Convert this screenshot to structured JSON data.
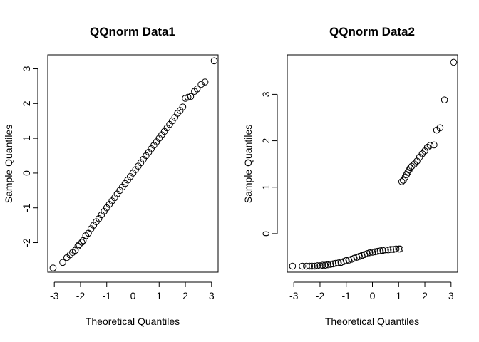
{
  "chart_data": [
    {
      "type": "scatter",
      "title": "QQnorm Data1",
      "xlabel": "Theoretical Quantiles",
      "ylabel": "Sample Quantiles",
      "xlim": [
        -3.25,
        3.25
      ],
      "ylim": [
        -2.85,
        3.4
      ],
      "x_ticks": [
        -3,
        -2,
        -1,
        0,
        1,
        2,
        3
      ],
      "y_ticks": [
        -2,
        -1,
        0,
        1,
        2,
        3
      ],
      "grid": false,
      "marker": "open-circle",
      "points": [
        [
          -3.05,
          -2.73
        ],
        [
          -2.68,
          -2.57
        ],
        [
          -2.52,
          -2.43
        ],
        [
          -2.4,
          -2.35
        ],
        [
          -2.3,
          -2.28
        ],
        [
          -2.2,
          -2.22
        ],
        [
          -2.1,
          -2.1
        ],
        [
          -2.05,
          -2.06
        ],
        [
          -1.95,
          -1.99
        ],
        [
          -1.9,
          -1.94
        ],
        [
          -1.8,
          -1.8
        ],
        [
          -1.7,
          -1.73
        ],
        [
          -1.6,
          -1.6
        ],
        [
          -1.5,
          -1.5
        ],
        [
          -1.4,
          -1.4
        ],
        [
          -1.3,
          -1.31
        ],
        [
          -1.2,
          -1.2
        ],
        [
          -1.1,
          -1.1
        ],
        [
          -1.0,
          -1.0
        ],
        [
          -0.9,
          -0.9
        ],
        [
          -0.8,
          -0.8
        ],
        [
          -0.7,
          -0.71
        ],
        [
          -0.6,
          -0.6
        ],
        [
          -0.5,
          -0.5
        ],
        [
          -0.4,
          -0.4
        ],
        [
          -0.3,
          -0.3
        ],
        [
          -0.2,
          -0.2
        ],
        [
          -0.1,
          -0.1
        ],
        [
          0.0,
          0.0
        ],
        [
          0.1,
          0.1
        ],
        [
          0.2,
          0.2
        ],
        [
          0.3,
          0.3
        ],
        [
          0.4,
          0.4
        ],
        [
          0.5,
          0.5
        ],
        [
          0.6,
          0.6
        ],
        [
          0.7,
          0.7
        ],
        [
          0.8,
          0.8
        ],
        [
          0.9,
          0.9
        ],
        [
          1.0,
          1.0
        ],
        [
          1.1,
          1.1
        ],
        [
          1.2,
          1.2
        ],
        [
          1.3,
          1.3
        ],
        [
          1.4,
          1.4
        ],
        [
          1.5,
          1.5
        ],
        [
          1.6,
          1.6
        ],
        [
          1.7,
          1.72
        ],
        [
          1.8,
          1.8
        ],
        [
          1.9,
          1.9
        ],
        [
          2.0,
          2.15
        ],
        [
          2.1,
          2.18
        ],
        [
          2.2,
          2.2
        ],
        [
          2.35,
          2.35
        ],
        [
          2.45,
          2.42
        ],
        [
          2.6,
          2.55
        ],
        [
          2.75,
          2.62
        ],
        [
          3.1,
          3.23
        ]
      ]
    },
    {
      "type": "scatter",
      "title": "QQnorm  Data2",
      "xlabel": "Theoretical Quantiles",
      "ylabel": "Sample Quantiles",
      "xlim": [
        -3.25,
        3.25
      ],
      "ylim": [
        -0.83,
        3.85
      ],
      "x_ticks": [
        -3,
        -2,
        -1,
        0,
        1,
        2,
        3
      ],
      "y_ticks": [
        0,
        1,
        2,
        3
      ],
      "grid": false,
      "marker": "open-circle",
      "points": [
        [
          -3.05,
          -0.7
        ],
        [
          -2.68,
          -0.7
        ],
        [
          -2.52,
          -0.7
        ],
        [
          -2.4,
          -0.7
        ],
        [
          -2.3,
          -0.7
        ],
        [
          -2.2,
          -0.7
        ],
        [
          -2.1,
          -0.69
        ],
        [
          -2.0,
          -0.69
        ],
        [
          -1.9,
          -0.68
        ],
        [
          -1.8,
          -0.68
        ],
        [
          -1.7,
          -0.67
        ],
        [
          -1.6,
          -0.66
        ],
        [
          -1.5,
          -0.65
        ],
        [
          -1.4,
          -0.64
        ],
        [
          -1.3,
          -0.63
        ],
        [
          -1.2,
          -0.62
        ],
        [
          -1.1,
          -0.6
        ],
        [
          -1.0,
          -0.58
        ],
        [
          -0.9,
          -0.57
        ],
        [
          -0.8,
          -0.55
        ],
        [
          -0.7,
          -0.53
        ],
        [
          -0.6,
          -0.51
        ],
        [
          -0.5,
          -0.49
        ],
        [
          -0.4,
          -0.47
        ],
        [
          -0.3,
          -0.45
        ],
        [
          -0.2,
          -0.43
        ],
        [
          -0.1,
          -0.41
        ],
        [
          0.0,
          -0.4
        ],
        [
          0.1,
          -0.39
        ],
        [
          0.2,
          -0.38
        ],
        [
          0.3,
          -0.37
        ],
        [
          0.4,
          -0.36
        ],
        [
          0.5,
          -0.35
        ],
        [
          0.6,
          -0.35
        ],
        [
          0.7,
          -0.34
        ],
        [
          0.8,
          -0.34
        ],
        [
          0.9,
          -0.33
        ],
        [
          1.0,
          -0.33
        ],
        [
          1.05,
          -0.33
        ],
        [
          1.12,
          1.12
        ],
        [
          1.18,
          1.15
        ],
        [
          1.25,
          1.22
        ],
        [
          1.3,
          1.27
        ],
        [
          1.35,
          1.32
        ],
        [
          1.4,
          1.37
        ],
        [
          1.45,
          1.42
        ],
        [
          1.5,
          1.45
        ],
        [
          1.6,
          1.5
        ],
        [
          1.7,
          1.56
        ],
        [
          1.8,
          1.65
        ],
        [
          1.9,
          1.72
        ],
        [
          2.0,
          1.78
        ],
        [
          2.1,
          1.86
        ],
        [
          2.2,
          1.9
        ],
        [
          2.35,
          1.91
        ],
        [
          2.45,
          2.23
        ],
        [
          2.58,
          2.28
        ],
        [
          2.75,
          2.88
        ],
        [
          3.1,
          3.69
        ]
      ]
    }
  ]
}
